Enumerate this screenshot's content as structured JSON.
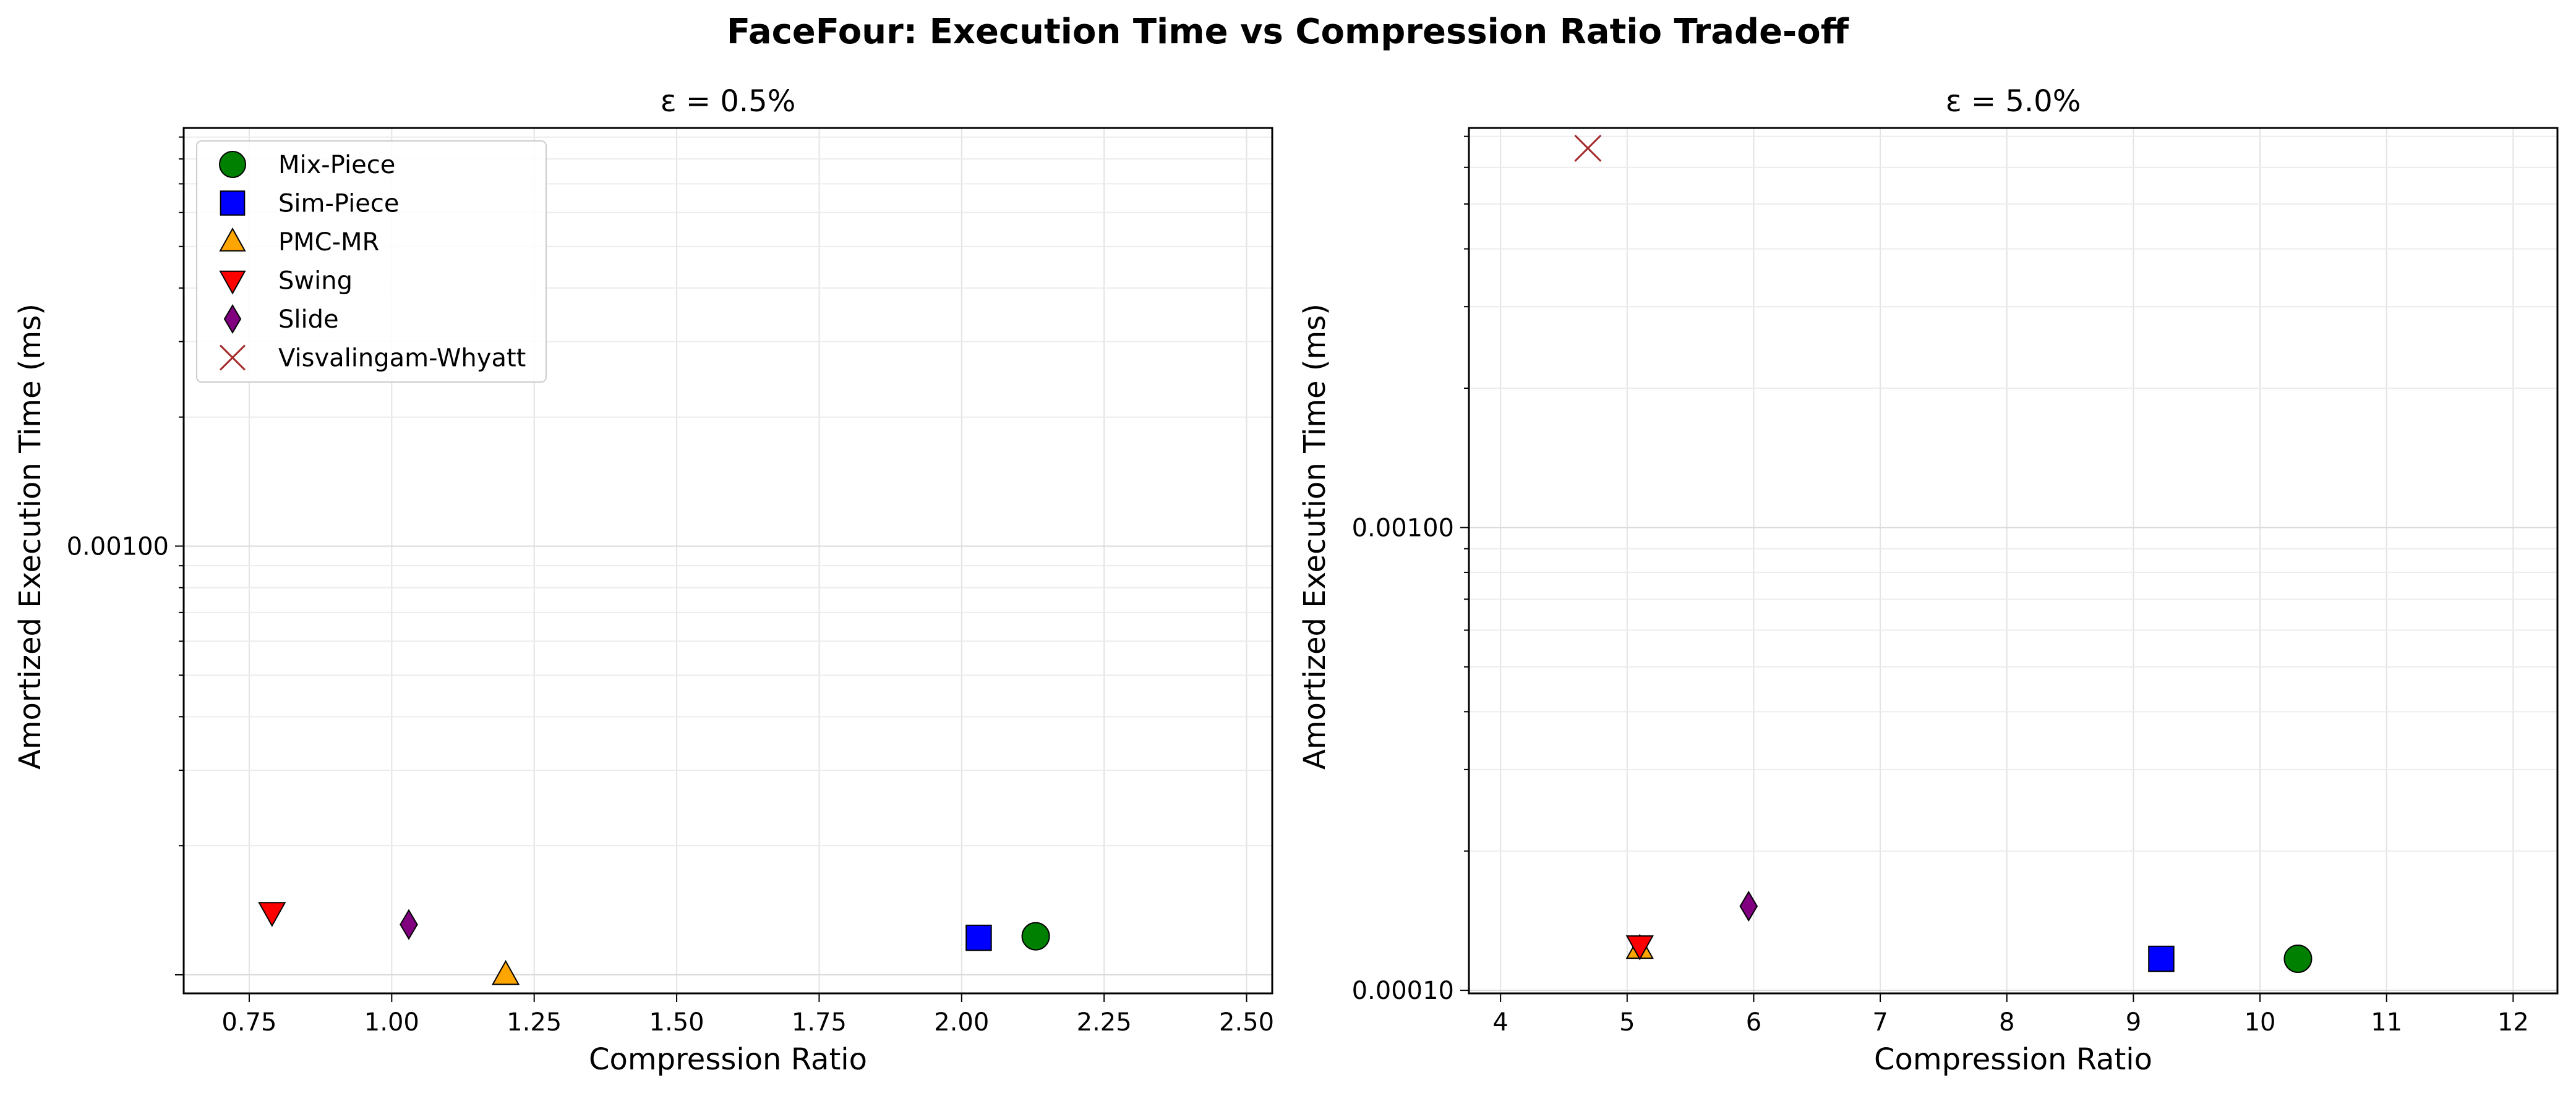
{
  "figure": {
    "title": "FaceFour: Execution Time vs Compression Ratio Trade-off"
  },
  "legend": {
    "placement": "upper-left of left panel",
    "entries": [
      {
        "name": "Mix-Piece",
        "marker": "circle",
        "color": "#008000"
      },
      {
        "name": "Sim-Piece",
        "marker": "square",
        "color": "#0000ff"
      },
      {
        "name": "PMC-MR",
        "marker": "triangle-up",
        "color": "#ffa500"
      },
      {
        "name": "Swing",
        "marker": "triangle-down",
        "color": "#ff0000"
      },
      {
        "name": "Slide",
        "marker": "diamond",
        "color": "#800080"
      },
      {
        "name": "Visvalingam-Whyatt",
        "marker": "x",
        "color": "#a52a2a"
      }
    ]
  },
  "chart_data": [
    {
      "type": "scatter",
      "title": "ε = 0.5%",
      "xlabel": "Compression Ratio",
      "ylabel": "Amortized Execution Time (ms)",
      "xlim": [
        0.635,
        2.545
      ],
      "ylim": [
        9.05e-05,
        0.00945
      ],
      "yscale": "log",
      "xticks": [
        0.75,
        1.0,
        1.25,
        1.5,
        1.75,
        2.0,
        2.25,
        2.5
      ],
      "xtick_labels": [
        "0.75",
        "1.00",
        "1.25",
        "1.50",
        "1.75",
        "2.00",
        "2.25",
        "2.50"
      ],
      "yticks": [
        0.001
      ],
      "ytick_labels": [
        "0.00100"
      ],
      "grid": true,
      "points": [
        {
          "series": "Mix-Piece",
          "x": 2.13,
          "y": 0.000123
        },
        {
          "series": "Sim-Piece",
          "x": 2.03,
          "y": 0.000122
        },
        {
          "series": "PMC-MR",
          "x": 1.2,
          "y": 0.0001
        },
        {
          "series": "Swing",
          "x": 0.79,
          "y": 0.00014
        },
        {
          "series": "Slide",
          "x": 1.03,
          "y": 0.000131
        }
      ]
    },
    {
      "type": "scatter",
      "title": "ε = 5.0%",
      "xlabel": "Compression Ratio",
      "ylabel": "Amortized Execution Time (ms)",
      "xlim": [
        3.75,
        12.35
      ],
      "ylim": [
        9.85e-05,
        0.0073
      ],
      "yscale": "log",
      "xticks": [
        4,
        5,
        6,
        7,
        8,
        9,
        10,
        11,
        12
      ],
      "xtick_labels": [
        "4",
        "5",
        "6",
        "7",
        "8",
        "9",
        "10",
        "11",
        "12"
      ],
      "yticks": [
        0.0001,
        0.001
      ],
      "ytick_labels": [
        "0.00010",
        "0.00100"
      ],
      "grid": true,
      "points": [
        {
          "series": "Mix-Piece",
          "x": 10.3,
          "y": 0.000117
        },
        {
          "series": "Sim-Piece",
          "x": 9.22,
          "y": 0.000117
        },
        {
          "series": "PMC-MR",
          "x": 5.1,
          "y": 0.000123
        },
        {
          "series": "Swing",
          "x": 5.1,
          "y": 0.000125
        },
        {
          "series": "Slide",
          "x": 5.96,
          "y": 0.000152
        },
        {
          "series": "Visvalingam-Whyatt",
          "x": 4.69,
          "y": 0.0066
        }
      ]
    }
  ]
}
